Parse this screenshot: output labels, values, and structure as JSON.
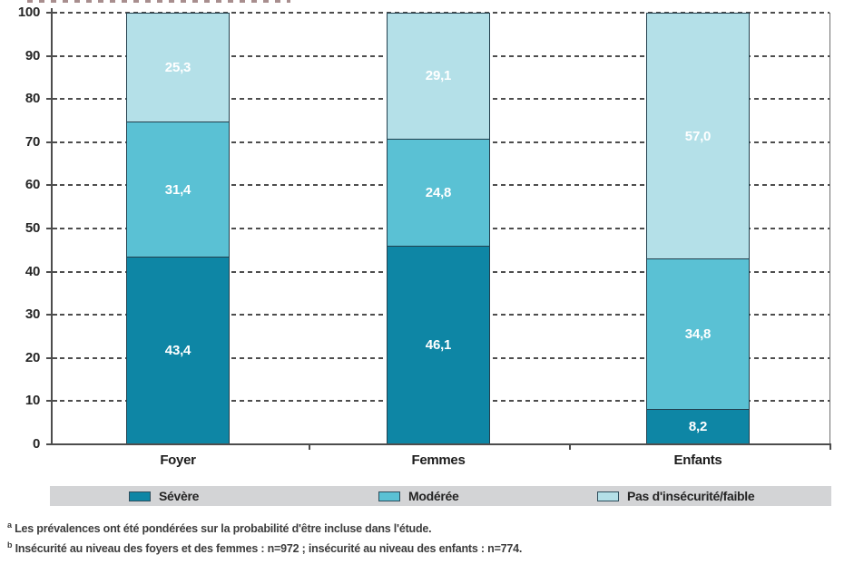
{
  "chart_data": {
    "type": "bar",
    "variant": "stacked-column-100pct",
    "categories": [
      "Foyer",
      "Femmes",
      "Enfants"
    ],
    "series": [
      {
        "name": "Sévère",
        "color": "#0e86a5",
        "values": [
          43.4,
          46.1,
          8.2
        ],
        "labels": [
          "43,4",
          "46,1",
          "8,2"
        ]
      },
      {
        "name": "Modérée",
        "color": "#5ac1d4",
        "values": [
          31.4,
          24.8,
          34.8
        ],
        "labels": [
          "31,4",
          "24,8",
          "34,8"
        ]
      },
      {
        "name": "Pas d'insécurité/faible",
        "color": "#b4e0e8",
        "values": [
          25.3,
          29.1,
          57.0
        ],
        "labels": [
          "25,3",
          "29,1",
          "57,0"
        ]
      }
    ],
    "ylim": [
      0,
      100
    ],
    "yticks": [
      0,
      10,
      20,
      30,
      40,
      50,
      60,
      70,
      80,
      90,
      100
    ],
    "grid": "horizontal-dashed",
    "legend_position": "bottom-strip",
    "value_label_color": "#ffffff"
  },
  "footnotes": [
    {
      "marker": "a",
      "text": "Les prévalences ont été pondérées sur la probabilité d'être incluse dans l'étude."
    },
    {
      "marker": "b",
      "text": "Insécurité au niveau des foyers et des femmes : n=972 ; insécurité au niveau des enfants : n=774."
    }
  ],
  "colors": {
    "severe": "#0e86a5",
    "moderee": "#5ac1d4",
    "pas_insecurite": "#b4e0e8",
    "legend_strip_bg": "#d3d4d6",
    "gridline": "#4d4d4d",
    "segment_border": "#23404e"
  }
}
